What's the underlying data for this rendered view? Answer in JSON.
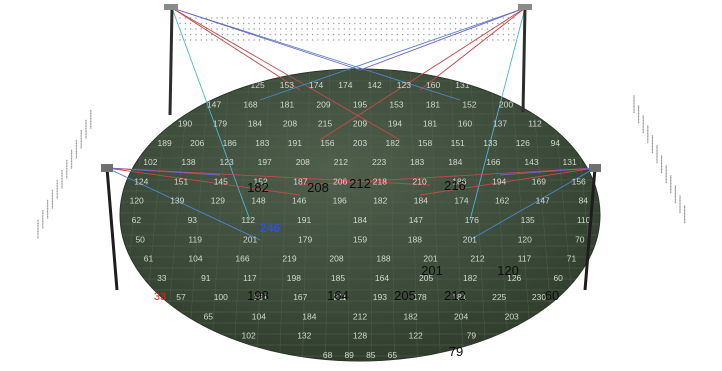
{
  "scene": {
    "surface_color": "#3c4a3a",
    "surface_edge_color": "#2a3528",
    "value_color": "#d2d8cf",
    "big_value_color": "#0d0d0d",
    "blue_value_color": "#2f52d8",
    "red_value_color": "#d42a1e",
    "ray_colors": {
      "red": "#c24b4b",
      "blue": "#4f86cf",
      "cyan": "#4fb3d3",
      "purple": "#7a5fc2"
    },
    "pole_icons": [
      "light-pole-icon",
      "light-pole-icon",
      "light-pole-icon",
      "light-pole-icon"
    ],
    "fixture_array_icons": [
      "floodlight-array-icon",
      "floodlight-array-icon",
      "floodlight-array-icon",
      "floodlight-array-icon"
    ]
  },
  "labels": {
    "rows": [
      [
        "125",
        "153",
        "174",
        "174",
        "142",
        "123",
        "160",
        "131"
      ],
      [
        "147",
        "168",
        "181",
        "209",
        "195",
        "153",
        "181",
        "152",
        "200"
      ],
      [
        "190",
        "179",
        "184",
        "208",
        "215",
        "209",
        "194",
        "181",
        "160",
        "137",
        "112"
      ],
      [
        "189",
        "206",
        "186",
        "183",
        "191",
        "156",
        "203",
        "182",
        "158",
        "151",
        "133",
        "126",
        "94"
      ],
      [
        "102",
        "138",
        "123",
        "197",
        "208",
        "212",
        "223",
        "183",
        "184",
        "166",
        "143",
        "131"
      ],
      [
        "124",
        "151",
        "145",
        "152",
        "187",
        "206",
        "218",
        "210",
        "186",
        "194",
        "169",
        "156"
      ],
      [
        "120",
        "139",
        "129",
        "148",
        "146",
        "196",
        "182",
        "184",
        "174",
        "162",
        "147",
        "84"
      ],
      [
        "62",
        "93",
        "112",
        "191",
        "184",
        "147",
        "176",
        "135",
        "110"
      ],
      [
        "50",
        "119",
        "201",
        "179",
        "159",
        "188",
        "201",
        "120",
        "70"
      ],
      [
        "61",
        "104",
        "166",
        "219",
        "208",
        "188",
        "201",
        "212",
        "117",
        "71"
      ],
      [
        "33",
        "91",
        "117",
        "198",
        "185",
        "164",
        "205",
        "182",
        "126",
        "60"
      ],
      [
        "57",
        "100",
        "161",
        "167",
        "211",
        "193",
        "178",
        "181",
        "225",
        "230"
      ],
      [
        "65",
        "104",
        "184",
        "212",
        "182",
        "204",
        "203"
      ],
      [
        "102",
        "132",
        "128",
        "122",
        "79"
      ],
      [
        "68",
        "89",
        "85",
        "65"
      ]
    ],
    "big_values": [
      "182",
      "208",
      "212",
      "216",
      "205",
      "198",
      "164",
      "212",
      "201",
      "120",
      "60",
      "79"
    ],
    "blue_values": [
      "246"
    ],
    "red_values": [
      "33"
    ]
  }
}
